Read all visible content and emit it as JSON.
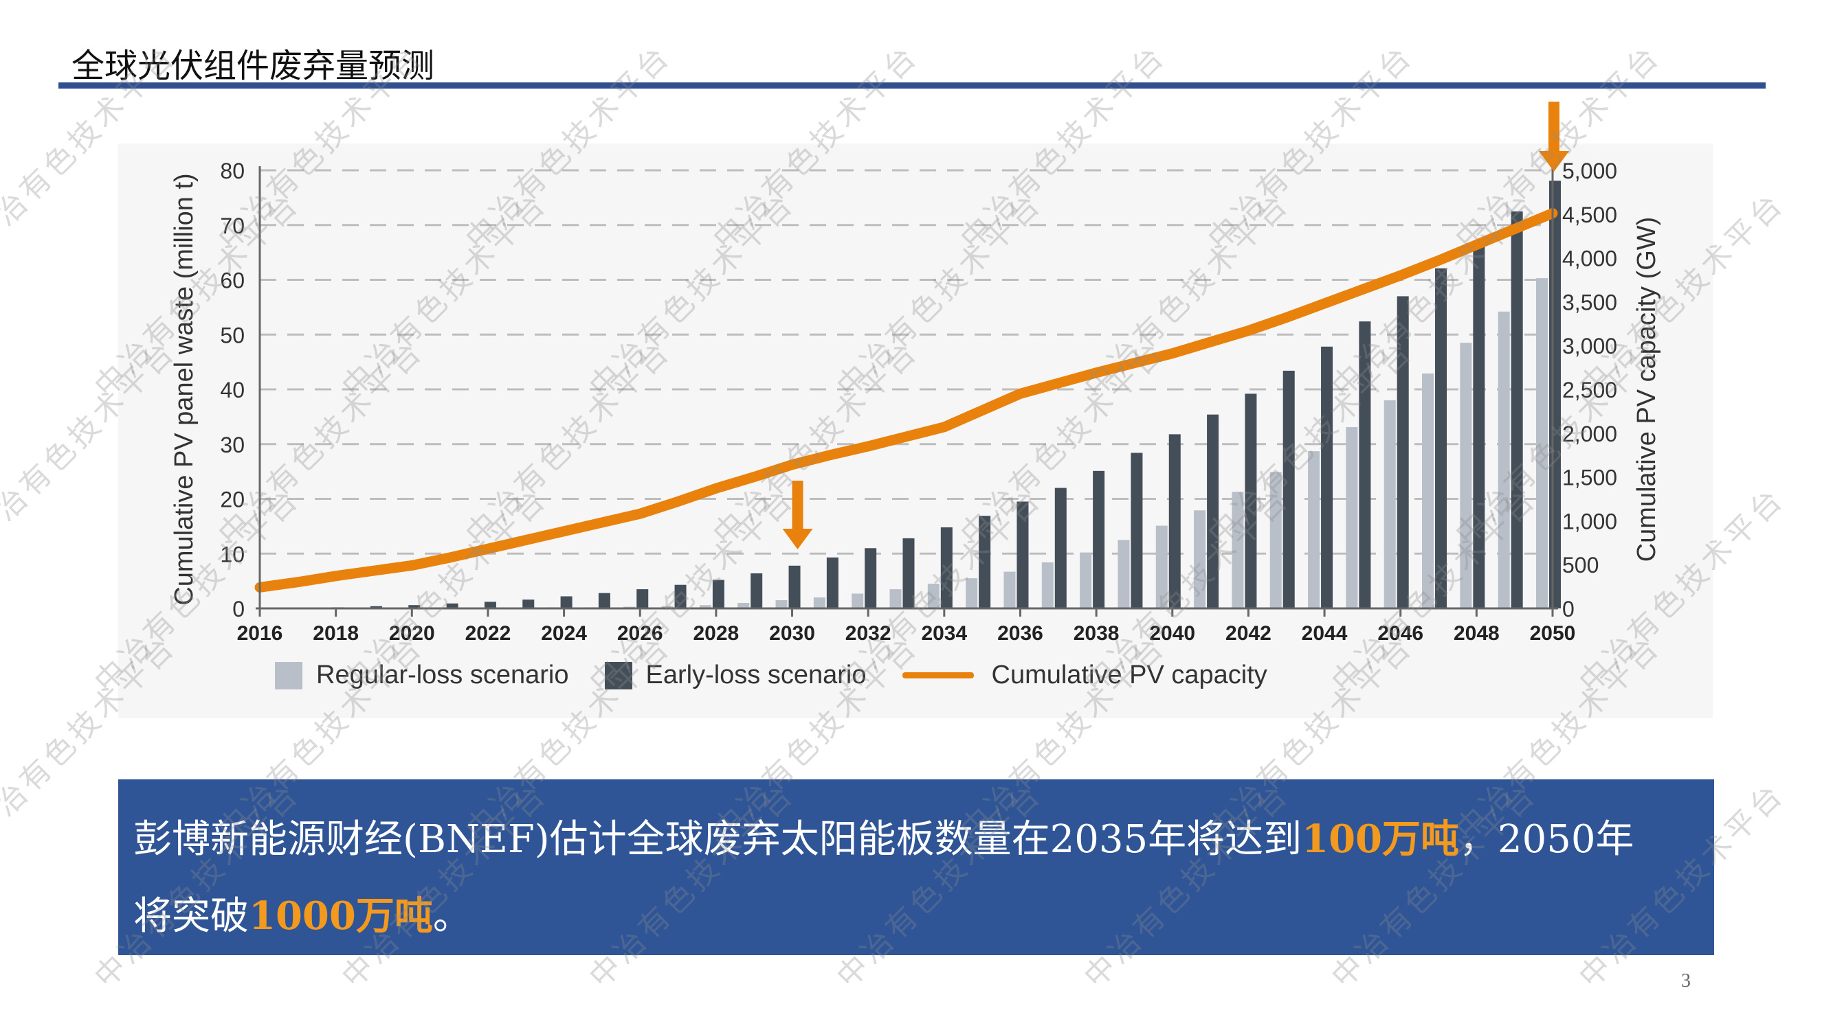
{
  "slide": {
    "title": "全球光伏组件废弃量预测",
    "page_number": "3",
    "watermark": "中冶有色技术平台"
  },
  "callout": {
    "line1": [
      {
        "text": "彭博新能源财经(BNEF)估计全球废弃太阳能板数量在2035年将达到",
        "highlight": false
      },
      {
        "text": "100万吨",
        "highlight": true
      },
      {
        "text": "，2050年",
        "highlight": false
      }
    ],
    "line2": [
      {
        "text": "将突破",
        "highlight": false
      },
      {
        "text": "1000万吨",
        "highlight": true
      },
      {
        "text": "。",
        "highlight": false
      }
    ]
  },
  "colors": {
    "regular": "#b9bfc8",
    "early": "#434e59",
    "capacity": "#e8820c",
    "title_rule": "#2f4f8f",
    "callout_bg": "#2f5597",
    "highlight": "#f39a1e"
  },
  "chart_data": {
    "type": "bar",
    "x": [
      2016,
      2017,
      2018,
      2019,
      2020,
      2021,
      2022,
      2023,
      2024,
      2025,
      2026,
      2027,
      2028,
      2029,
      2030,
      2031,
      2032,
      2033,
      2034,
      2035,
      2036,
      2037,
      2038,
      2039,
      2040,
      2041,
      2042,
      2043,
      2044,
      2045,
      2046,
      2047,
      2048,
      2049,
      2050
    ],
    "xtick_labels": [
      "2016",
      "2018",
      "2020",
      "2022",
      "2024",
      "2026",
      "2028",
      "2030",
      "2032",
      "2034",
      "2036",
      "2038",
      "2040",
      "2042",
      "2044",
      "2046",
      "2048",
      "2050"
    ],
    "series": [
      {
        "name": "Regular-loss scenario",
        "type": "bar",
        "axis": "left",
        "values": [
          0,
          0,
          0,
          0,
          0,
          0.1,
          0.1,
          0.1,
          0.2,
          0.2,
          0.3,
          0.4,
          0.6,
          1.0,
          1.5,
          2.0,
          2.7,
          3.5,
          4.5,
          5.5,
          6.7,
          8.4,
          10.2,
          12.5,
          15.1,
          17.9,
          21.3,
          24.9,
          28.7,
          33.1,
          38.0,
          42.9,
          48.5,
          54.2,
          60.3
        ]
      },
      {
        "name": "Early-loss scenario",
        "type": "bar",
        "axis": "left",
        "values": [
          0.1,
          0.1,
          0.2,
          0.4,
          0.6,
          0.9,
          1.2,
          1.6,
          2.2,
          2.8,
          3.5,
          4.3,
          5.2,
          6.4,
          7.8,
          9.3,
          11.0,
          12.8,
          14.8,
          16.9,
          19.5,
          22.0,
          25.1,
          28.4,
          31.8,
          35.4,
          39.2,
          43.4,
          47.8,
          52.4,
          57.0,
          62.1,
          67.0,
          72.5,
          78.1
        ]
      },
      {
        "name": "Cumulative PV capacity",
        "type": "line",
        "axis": "right",
        "values": [
          240,
          300,
          370,
          430,
          490,
          580,
          680,
          780,
          880,
          980,
          1080,
          1220,
          1370,
          1500,
          1640,
          1750,
          1850,
          1960,
          2070,
          2260,
          2450,
          2570,
          2690,
          2800,
          2910,
          3040,
          3170,
          3320,
          3480,
          3640,
          3800,
          3970,
          4150,
          4330,
          4510
        ]
      }
    ],
    "ylabel": "Cumulative PV panel waste (million t)",
    "ylim": [
      0,
      80
    ],
    "yticks": [
      "0",
      "10",
      "20",
      "30",
      "40",
      "50",
      "60",
      "70",
      "80"
    ],
    "y2label": "Cumulative PV capacity (GW)",
    "y2lim": [
      0,
      5000
    ],
    "y2ticks": [
      "0",
      "500",
      "1,000",
      "1,500",
      "2,000",
      "2,500",
      "3,000",
      "3,500",
      "4,000",
      "4,500",
      "5,000"
    ],
    "grid": "horizontal dashed",
    "legend": "bottom",
    "annotations": [
      {
        "type": "arrow-down",
        "x": 2030
      },
      {
        "type": "arrow-down",
        "x": 2050
      }
    ]
  }
}
